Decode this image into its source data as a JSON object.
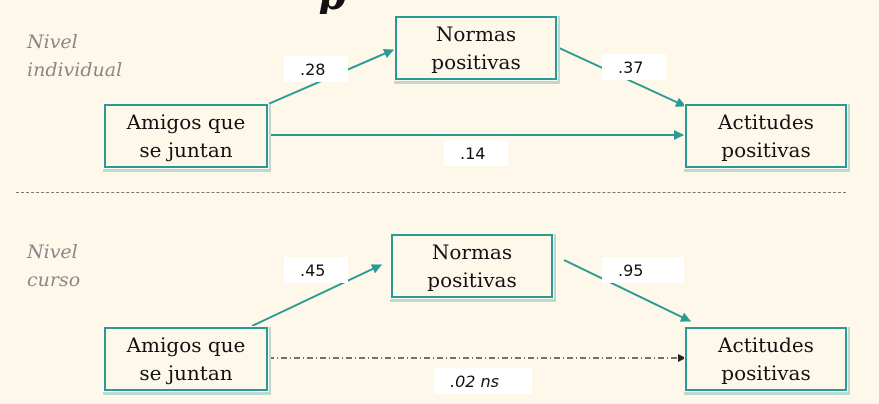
{
  "levels": {
    "individual": [
      "Nivel",
      "individual"
    ],
    "curso": [
      "Nivel",
      "curso"
    ]
  },
  "boxes": {
    "amigos": [
      "Amigos que",
      "se juntan"
    ],
    "normas": [
      "Normas",
      "positivas"
    ],
    "actitudes": [
      "Actitudes",
      "positivas"
    ]
  },
  "paths": {
    "individual": {
      "a": ".28",
      "b": ".37",
      "c": ".14"
    },
    "curso": {
      "a": ".45",
      "b": ".95",
      "c": ".02 ns"
    }
  },
  "colors": {
    "accent": "#2a9a94",
    "background": "#fdf8ea"
  }
}
